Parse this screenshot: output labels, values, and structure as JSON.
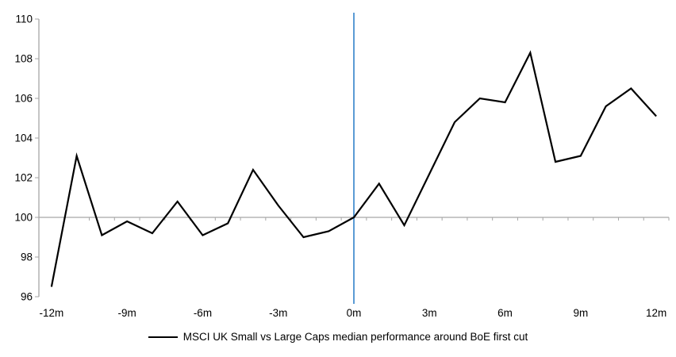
{
  "chart_data": {
    "type": "line",
    "title": "",
    "xlabel": "",
    "ylabel": "",
    "ylim": [
      96,
      110
    ],
    "y_ticks": [
      96,
      98,
      100,
      102,
      104,
      106,
      108,
      110
    ],
    "x_tick_labels": [
      {
        "month": -12,
        "label": "-12m"
      },
      {
        "month": -9,
        "label": "-9m"
      },
      {
        "month": -6,
        "label": "-6m"
      },
      {
        "month": -3,
        "label": "-3m"
      },
      {
        "month": 0,
        "label": "0m"
      },
      {
        "month": 3,
        "label": "3m"
      },
      {
        "month": 6,
        "label": "6m"
      },
      {
        "month": 9,
        "label": "9m"
      },
      {
        "month": 12,
        "label": "12m"
      }
    ],
    "baseline_value": 100,
    "event_line_x": 0,
    "grid": "baseline-only",
    "legend_position": "bottom-center",
    "series": [
      {
        "name": "MSCI UK Small vs Large Caps median performance around BoE first cut",
        "x": [
          -12,
          -11,
          -10,
          -9,
          -8,
          -7,
          -6,
          -5,
          -4,
          -3,
          -2,
          -1,
          0,
          1,
          2,
          3,
          4,
          5,
          6,
          7,
          8,
          9,
          10,
          11,
          12
        ],
        "values": [
          96.5,
          103.1,
          99.1,
          99.8,
          99.2,
          100.8,
          99.1,
          99.7,
          102.4,
          100.6,
          99.0,
          99.3,
          100.0,
          101.7,
          99.6,
          102.2,
          104.8,
          106.0,
          105.8,
          108.3,
          102.8,
          103.1,
          105.6,
          106.5,
          105.1
        ]
      }
    ],
    "colors": {
      "series": "#000000",
      "event_line": "#5B9BD5",
      "axis": "#a6a6a6",
      "baseline": "#a6a6a6",
      "label_text": "#000000"
    }
  }
}
